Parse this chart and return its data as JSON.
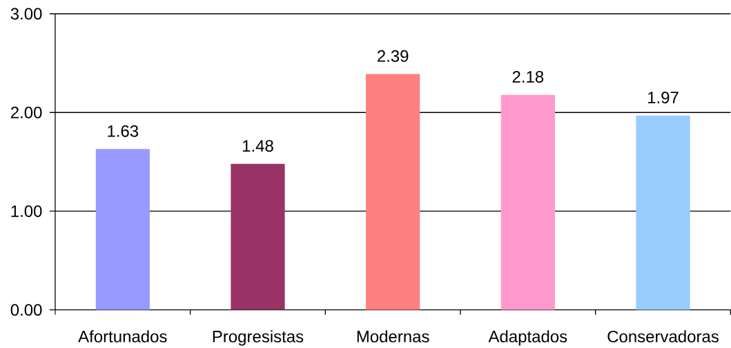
{
  "chart_data": {
    "type": "bar",
    "categories": [
      "Afortunados",
      "Progresistas",
      "Modernas",
      "Adaptados",
      "Conservadoras"
    ],
    "values": [
      1.63,
      1.48,
      2.39,
      2.18,
      1.97
    ],
    "colors": [
      "#9999ff",
      "#993366",
      "#ff8080",
      "#ff99cc",
      "#99ccff"
    ],
    "ylim": [
      0,
      3
    ],
    "yticks": [
      {
        "value": 0,
        "label": "0.00"
      },
      {
        "value": 1,
        "label": "1.00"
      },
      {
        "value": 2,
        "label": "2.00"
      },
      {
        "value": 3,
        "label": "3.00"
      }
    ],
    "grid": "y",
    "data_labels": true
  }
}
